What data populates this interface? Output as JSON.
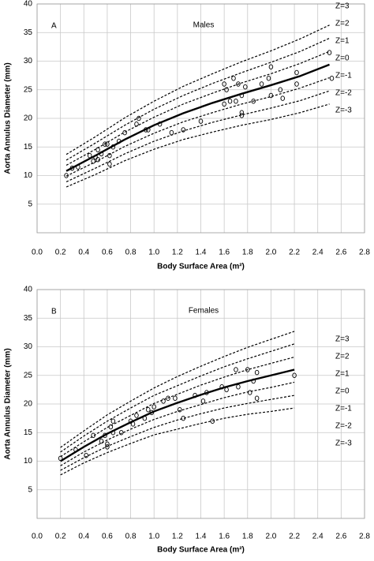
{
  "chart_data": [
    {
      "type": "scatter",
      "panel_label": "A",
      "title": "Males",
      "xlabel": "Body Surface Area (m²)",
      "ylabel": "Aorta Annulus Diameter (mm)",
      "xlim": [
        0,
        2.8
      ],
      "ylim": [
        0,
        40
      ],
      "xticks": [
        {
          "value": 0,
          "label": "0.0"
        },
        0.2,
        0.4,
        0.6,
        0.8,
        {
          "value": 1,
          "label": "1.0"
        },
        1.2,
        1.4,
        1.6,
        1.8,
        {
          "value": 2,
          "label": "2.0"
        },
        2.2,
        2.4,
        2.6,
        2.8
      ],
      "yticks": [
        5,
        10,
        15,
        20,
        25,
        30,
        35,
        40
      ],
      "grid": true,
      "x": [
        0.25,
        0.5,
        0.75,
        1.0,
        1.25,
        1.5,
        1.75,
        2.0,
        2.25,
        2.5
      ],
      "series": [
        {
          "name": "Z=3",
          "color": "#000000",
          "dashed": true,
          "values": [
            13.7,
            16.8,
            20.1,
            23.0,
            25.6,
            27.8,
            29.9,
            31.8,
            33.9,
            36.3
          ]
        },
        {
          "name": "Z=2",
          "color": "#000000",
          "dashed": true,
          "values": [
            12.7,
            15.7,
            18.8,
            21.6,
            24.0,
            26.1,
            28.0,
            29.8,
            31.7,
            34.0
          ]
        },
        {
          "name": "Z=1",
          "color": "#000000",
          "dashed": true,
          "values": [
            11.8,
            14.6,
            17.6,
            20.2,
            22.5,
            24.4,
            26.2,
            27.8,
            29.6,
            31.7
          ]
        },
        {
          "name": "Z=0",
          "color": "#000000",
          "dashed": false,
          "values": [
            10.8,
            13.5,
            16.3,
            18.8,
            20.9,
            22.7,
            24.3,
            25.8,
            27.4,
            29.4
          ]
        },
        {
          "name": "Z=-1",
          "color": "#000000",
          "dashed": true,
          "values": [
            9.9,
            12.4,
            15.1,
            17.4,
            19.4,
            21.0,
            22.5,
            23.8,
            25.3,
            27.1
          ]
        },
        {
          "name": "Z=-2",
          "color": "#000000",
          "dashed": true,
          "values": [
            8.9,
            11.3,
            13.8,
            16.0,
            17.8,
            19.3,
            20.6,
            21.8,
            23.1,
            24.8
          ]
        },
        {
          "name": "Z=-3",
          "color": "#000000",
          "dashed": true,
          "values": [
            8.0,
            10.2,
            12.6,
            14.6,
            16.3,
            17.6,
            18.8,
            19.8,
            21.0,
            22.5
          ]
        }
      ],
      "scatter": {
        "color": "#000000",
        "x": [
          0.25,
          0.3,
          0.35,
          0.45,
          0.48,
          0.5,
          0.52,
          0.52,
          0.55,
          0.58,
          0.6,
          0.62,
          0.62,
          0.65,
          0.7,
          0.75,
          0.85,
          0.87,
          0.93,
          0.95,
          1.05,
          1.15,
          1.25,
          1.4,
          1.6,
          1.6,
          1.62,
          1.65,
          1.68,
          1.7,
          1.72,
          1.75,
          1.75,
          1.75,
          1.78,
          1.85,
          1.92,
          1.98,
          2.0,
          2.0,
          2.08,
          2.1,
          2.22,
          2.22,
          2.5,
          2.52
        ],
        "values": [
          10,
          11.3,
          11.5,
          13.5,
          12.5,
          13.2,
          14.5,
          12.8,
          13.8,
          15.5,
          15.5,
          13.5,
          12,
          15,
          16,
          17.5,
          19,
          20,
          18,
          18,
          19,
          17.5,
          18,
          19.5,
          26,
          22.5,
          25,
          23,
          27,
          23,
          26,
          24,
          21,
          20.5,
          25.5,
          23,
          26,
          27,
          29,
          24,
          25,
          23.5,
          28,
          26,
          31.5,
          27
        ]
      }
    },
    {
      "type": "scatter",
      "panel_label": "B",
      "title": "Females",
      "xlabel": "Body Surface Area (m²)",
      "ylabel": "Aorta Annulus Diameter (mm)",
      "xlim": [
        0,
        2.8
      ],
      "ylim": [
        0,
        40
      ],
      "xticks": [
        {
          "value": 0,
          "label": "0.0"
        },
        0.2,
        0.4,
        0.6,
        0.8,
        {
          "value": 1,
          "label": "1.0"
        },
        1.2,
        1.4,
        1.6,
        1.8,
        {
          "value": 2,
          "label": "2.0"
        },
        2.2,
        2.4,
        2.6,
        2.8
      ],
      "yticks": [
        5,
        10,
        15,
        20,
        25,
        30,
        35,
        40
      ],
      "grid": true,
      "x": [
        0.2,
        0.4,
        0.6,
        0.8,
        1.0,
        1.2,
        1.4,
        1.6,
        1.8,
        2.0,
        2.2
      ],
      "series": [
        {
          "name": "Z=3",
          "color": "#000000",
          "dashed": true,
          "values": [
            12.4,
            15.3,
            18.1,
            20.5,
            22.8,
            24.8,
            26.6,
            28.3,
            29.9,
            31.3,
            32.7
          ]
        },
        {
          "name": "Z=2",
          "color": "#000000",
          "dashed": true,
          "values": [
            11.6,
            14.4,
            17.0,
            19.3,
            21.5,
            23.2,
            24.9,
            26.5,
            27.9,
            29.2,
            30.5
          ]
        },
        {
          "name": "Z=1",
          "color": "#000000",
          "dashed": true,
          "values": [
            10.8,
            13.4,
            15.9,
            18.0,
            20.1,
            21.7,
            23.3,
            24.7,
            26.0,
            27.1,
            28.2
          ]
        },
        {
          "name": "Z=0",
          "color": "#000000",
          "dashed": false,
          "values": [
            10.0,
            12.5,
            14.8,
            16.8,
            18.7,
            20.2,
            21.6,
            22.9,
            24.0,
            25.0,
            26.0
          ]
        },
        {
          "name": "Z=-1",
          "color": "#000000",
          "dashed": true,
          "values": [
            9.2,
            11.6,
            13.7,
            15.6,
            17.3,
            18.7,
            19.9,
            21.1,
            22.1,
            22.9,
            23.8
          ]
        },
        {
          "name": "Z=-2",
          "color": "#000000",
          "dashed": true,
          "values": [
            8.4,
            10.6,
            12.6,
            14.3,
            15.9,
            17.2,
            18.3,
            19.3,
            20.1,
            20.8,
            21.5
          ]
        },
        {
          "name": "Z=-3",
          "color": "#000000",
          "dashed": true,
          "values": [
            7.6,
            9.7,
            11.5,
            13.1,
            14.6,
            15.6,
            16.6,
            17.5,
            18.2,
            18.7,
            19.3
          ]
        }
      ],
      "scatter": {
        "color": "#000000",
        "x": [
          0.2,
          0.33,
          0.42,
          0.48,
          0.55,
          0.58,
          0.6,
          0.6,
          0.63,
          0.65,
          0.65,
          0.72,
          0.8,
          0.82,
          0.85,
          0.92,
          0.95,
          0.98,
          1.0,
          1.08,
          1.12,
          1.18,
          1.22,
          1.25,
          1.35,
          1.42,
          1.45,
          1.5,
          1.58,
          1.62,
          1.7,
          1.72,
          1.8,
          1.82,
          1.85,
          1.88,
          1.88,
          2.2
        ],
        "values": [
          10.5,
          12,
          11,
          14.5,
          13.5,
          14.5,
          13,
          12.5,
          16,
          15,
          17,
          15,
          17,
          16.5,
          18,
          17.5,
          19,
          18.5,
          19.5,
          20.5,
          21,
          21,
          19,
          17.5,
          21.5,
          20.5,
          22,
          17,
          23,
          22.5,
          26,
          23,
          26,
          22,
          24,
          21,
          25.5,
          25
        ]
      }
    }
  ]
}
